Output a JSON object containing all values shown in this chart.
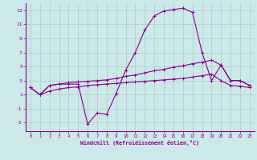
{
  "xlabel": "Windchill (Refroidissement éolien,°C)",
  "bg_color": "#cce8e8",
  "line_color": "#880088",
  "grid_color": "#aacccc",
  "spine_color": "#880088",
  "xlim": [
    -0.5,
    23.5
  ],
  "ylim": [
    -4.2,
    14.0
  ],
  "xticks": [
    0,
    1,
    2,
    3,
    4,
    5,
    6,
    7,
    8,
    9,
    10,
    11,
    12,
    13,
    14,
    15,
    16,
    17,
    18,
    19,
    20,
    21,
    22,
    23
  ],
  "yticks": [
    -3,
    -1,
    1,
    3,
    5,
    7,
    9,
    11,
    13
  ],
  "series": {
    "line1_x": [
      0,
      1,
      2,
      3,
      4,
      5,
      6,
      7,
      8,
      9,
      10,
      11,
      12,
      13,
      14,
      15,
      16,
      17,
      18,
      19,
      20,
      21,
      22,
      23
    ],
    "line1_y": [
      2.0,
      1.0,
      2.3,
      2.5,
      2.5,
      2.5,
      -3.2,
      -1.6,
      -1.8,
      1.2,
      4.5,
      7.0,
      10.2,
      12.2,
      12.9,
      13.1,
      13.3,
      12.7,
      7.0,
      3.0,
      5.2,
      3.0,
      3.0,
      2.3
    ],
    "line2_x": [
      0,
      1,
      2,
      3,
      4,
      5,
      6,
      7,
      8,
      9,
      10,
      11,
      12,
      13,
      14,
      15,
      16,
      17,
      18,
      19,
      20,
      21,
      22,
      23
    ],
    "line2_y": [
      2.0,
      1.0,
      2.3,
      2.5,
      2.7,
      2.8,
      2.9,
      3.0,
      3.1,
      3.3,
      3.6,
      3.8,
      4.1,
      4.4,
      4.6,
      4.9,
      5.1,
      5.4,
      5.6,
      5.9,
      5.2,
      3.0,
      3.0,
      2.3
    ],
    "line3_x": [
      0,
      1,
      2,
      3,
      4,
      5,
      6,
      7,
      8,
      9,
      10,
      11,
      12,
      13,
      14,
      15,
      16,
      17,
      18,
      19,
      20,
      21,
      22,
      23
    ],
    "line3_y": [
      2.0,
      1.0,
      1.5,
      1.8,
      2.0,
      2.1,
      2.3,
      2.4,
      2.5,
      2.6,
      2.7,
      2.8,
      2.9,
      3.0,
      3.1,
      3.2,
      3.3,
      3.5,
      3.7,
      3.9,
      3.0,
      2.3,
      2.2,
      2.0
    ]
  }
}
